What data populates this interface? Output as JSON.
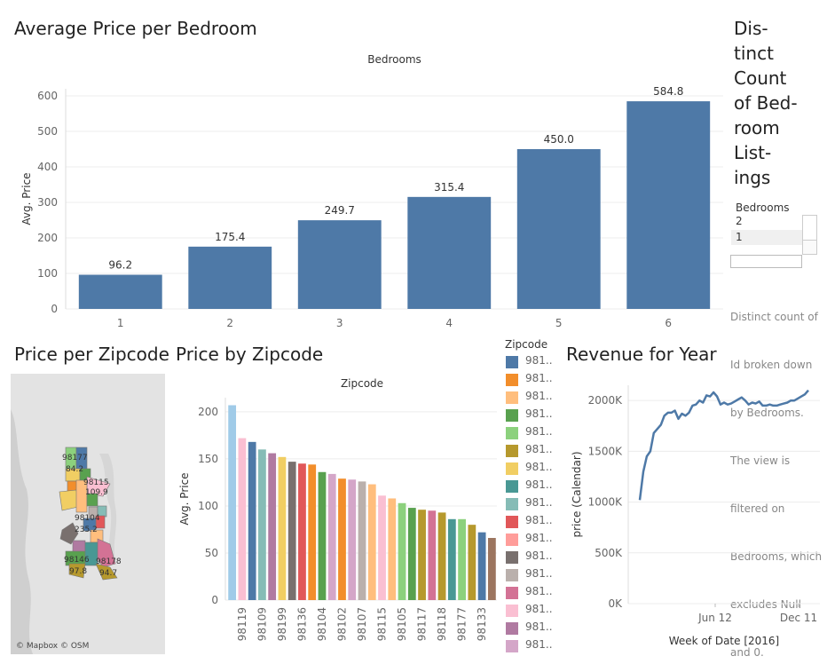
{
  "titles": {
    "avg_price_per_bedroom": "Average Price per Bedroom",
    "price_per_zipcode": "Price per Zipcode",
    "price_by_zipcode": "Price by Zipcode",
    "revenue_for_year": "Revenue for Year",
    "distinct_count": [
      "Dis-",
      "tinct",
      "Count",
      "of Bed-",
      "room",
      "List-",
      "ings"
    ]
  },
  "bedroom_filter": {
    "header": "Bedrooms",
    "items": [
      "2",
      "1"
    ],
    "description": [
      "Distinct count of",
      "Id broken down",
      "by Bedrooms.",
      "The view is",
      "filtered on",
      "Bedrooms, which",
      "excludes Null",
      "and 0."
    ]
  },
  "map": {
    "labels": [
      "98177",
      "84.2",
      "98115",
      "109.9",
      "98104",
      "235.2",
      "98146",
      "98178",
      "97.8",
      "94.7"
    ],
    "attribution": "© Mapbox © OSM"
  },
  "zip_legend": {
    "title": "Zipcode",
    "items": [
      {
        "label": "981..",
        "color": "#4e79a7"
      },
      {
        "label": "981..",
        "color": "#f28e2b"
      },
      {
        "label": "981..",
        "color": "#ffbe7d"
      },
      {
        "label": "981..",
        "color": "#59a14f"
      },
      {
        "label": "981..",
        "color": "#8cd17d"
      },
      {
        "label": "981..",
        "color": "#b6992d"
      },
      {
        "label": "981..",
        "color": "#f1ce63"
      },
      {
        "label": "981..",
        "color": "#499894"
      },
      {
        "label": "981..",
        "color": "#86bcb6"
      },
      {
        "label": "981..",
        "color": "#e15759"
      },
      {
        "label": "981..",
        "color": "#ff9d9a"
      },
      {
        "label": "981..",
        "color": "#79706e"
      },
      {
        "label": "981..",
        "color": "#bab0ac"
      },
      {
        "label": "981..",
        "color": "#d37295"
      },
      {
        "label": "981..",
        "color": "#fabfd2"
      },
      {
        "label": "981..",
        "color": "#b07aa1"
      },
      {
        "label": "981..",
        "color": "#d4a6c8"
      }
    ]
  },
  "chart_data": [
    {
      "type": "bar",
      "title": "Average Price per Bedroom",
      "header": "Bedrooms",
      "ylabel": "Avg. Price",
      "categories": [
        "1",
        "2",
        "3",
        "4",
        "5",
        "6"
      ],
      "values": [
        96.2,
        175.4,
        249.7,
        315.4,
        450.0,
        584.8
      ],
      "value_labels": [
        "96.2",
        "175.4",
        "249.7",
        "315.4",
        "450.0",
        "584.8"
      ],
      "ylim": [
        0,
        620
      ],
      "yticks": [
        0,
        100,
        200,
        300,
        400,
        500,
        600
      ],
      "color": "#4e79a7",
      "grid": true
    },
    {
      "type": "bar",
      "title": "Price by Zipcode",
      "header": "Zipcode",
      "ylabel": "Avg. Price",
      "categories": [
        "",
        "98119",
        "",
        "98109",
        "",
        "98199",
        "",
        "98136",
        "",
        "98104",
        "",
        "98102",
        "",
        "98107",
        "",
        "98115",
        "",
        "98105",
        "",
        "98117",
        "",
        "98118",
        "",
        "98177",
        "",
        "98133",
        ""
      ],
      "values": [
        207,
        172,
        168,
        160,
        156,
        152,
        147,
        145,
        144,
        136,
        134,
        129,
        128,
        126,
        123,
        111,
        108,
        103,
        98,
        96,
        95,
        93,
        86,
        86,
        80,
        72,
        66
      ],
      "colors": [
        "#a0cbe8",
        "#fabfd2",
        "#4e79a7",
        "#86bcb6",
        "#b07aa1",
        "#f1ce63",
        "#79706e",
        "#e15759",
        "#f28e2b",
        "#59a14f",
        "#d4a6c8",
        "#f28e2b",
        "#d4a6c8",
        "#bab0ac",
        "#ffbe7d",
        "#fabfd2",
        "#ffbe7d",
        "#8cd17d",
        "#59a14f",
        "#b6992d",
        "#d37295",
        "#b6992d",
        "#499894",
        "#8cd17d",
        "#b6992d",
        "#4e79a7",
        "#9c755f"
      ],
      "ylim": [
        0,
        215
      ],
      "yticks": [
        0,
        50,
        100,
        150,
        200
      ],
      "grid": true
    },
    {
      "type": "line",
      "title": "Revenue for Year",
      "xlabel": "Week of Date [2016]",
      "ylabel": "price (Calendar)",
      "x_ticks": [
        "Jun 12",
        "Dec 11"
      ],
      "y_ticks": [
        "0K",
        "500K",
        "1000K",
        "1500K",
        "2000K"
      ],
      "ylim": [
        0,
        2150000
      ],
      "values": [
        1020000,
        1300000,
        1450000,
        1500000,
        1680000,
        1720000,
        1760000,
        1850000,
        1880000,
        1880000,
        1900000,
        1820000,
        1870000,
        1850000,
        1880000,
        1950000,
        1960000,
        2000000,
        1980000,
        2050000,
        2040000,
        2080000,
        2040000,
        1960000,
        1980000,
        1960000,
        1970000,
        1990000,
        2010000,
        2030000,
        2000000,
        1960000,
        1980000,
        1970000,
        1990000,
        1950000,
        1950000,
        1960000,
        1950000,
        1950000,
        1960000,
        1970000,
        1980000,
        2000000,
        2000000,
        2020000,
        2040000,
        2060000,
        2100000
      ]
    }
  ]
}
